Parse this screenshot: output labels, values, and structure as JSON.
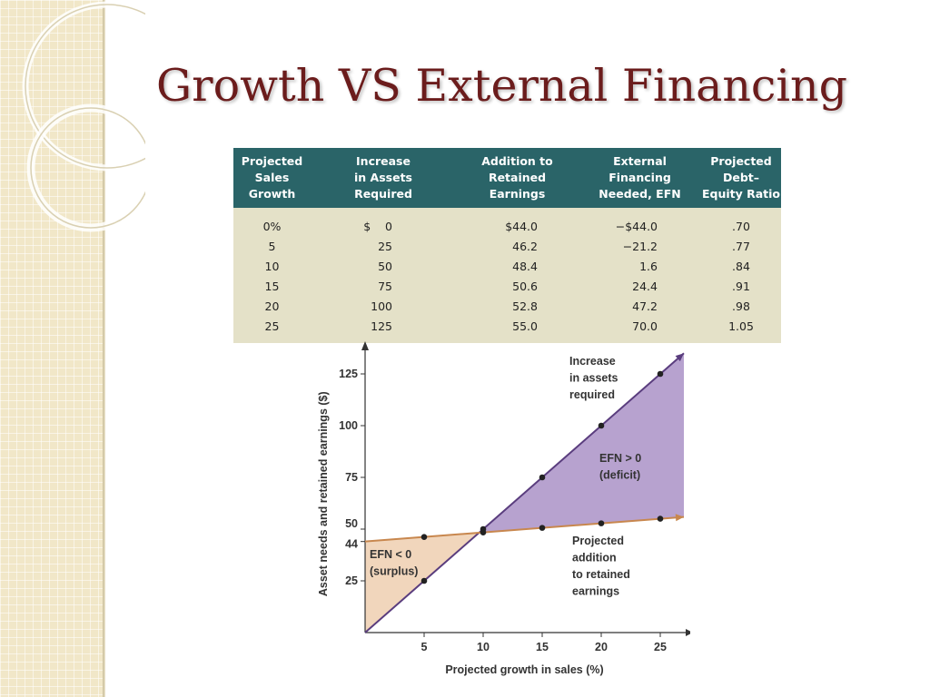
{
  "slide": {
    "title": "Growth VS External Financing"
  },
  "table": {
    "headers": [
      "Projected\nSales\nGrowth",
      "Increase\nin Assets\nRequired",
      "Addition to\nRetained\nEarnings",
      "External\nFinancing\nNeeded, EFN",
      "Projected\nDebt–\nEquity Ratio"
    ],
    "rows": [
      [
        "0%",
        "$    0",
        "$44.0",
        "−$44.0",
        ".70"
      ],
      [
        "5",
        "25",
        "46.2",
        "−21.2",
        ".77"
      ],
      [
        "10",
        "50",
        "48.4",
        "1.6",
        ".84"
      ],
      [
        "15",
        "75",
        "50.6",
        "24.4",
        ".91"
      ],
      [
        "20",
        "100",
        "52.8",
        "47.2",
        ".98"
      ],
      [
        "25",
        "125",
        "55.0",
        "70.0",
        "1.05"
      ]
    ]
  },
  "chart_data": {
    "type": "line",
    "title": "",
    "xlabel": "Projected growth in sales (%)",
    "ylabel": "Asset needs and retained earnings ($)",
    "xlim": [
      0,
      27
    ],
    "ylim": [
      0,
      135
    ],
    "x_ticks": [
      5,
      10,
      15,
      20,
      25
    ],
    "y_ticks": [
      25,
      44,
      50,
      75,
      100,
      125
    ],
    "grid": false,
    "series": [
      {
        "name": "Increase in assets required",
        "x": [
          5,
          10,
          15,
          20,
          25
        ],
        "values": [
          25,
          50,
          75,
          100,
          125
        ],
        "color": "#5a3d7e"
      },
      {
        "name": "Projected addition to retained earnings",
        "x": [
          5,
          10,
          15,
          20,
          25
        ],
        "values": [
          46.2,
          48.4,
          50.6,
          52.8,
          55.0
        ],
        "color": "#c8874e"
      }
    ],
    "annotations": [
      {
        "lines": [
          "Increase",
          "in assets",
          "required"
        ]
      },
      {
        "lines": [
          "EFN > 0",
          "(deficit)"
        ]
      },
      {
        "lines": [
          "EFN < 0",
          "(surplus)"
        ]
      },
      {
        "lines": [
          "Projected",
          "addition",
          "to retained",
          "earnings"
        ]
      }
    ],
    "colors": {
      "deficit_fill": "#b7a2cf",
      "surplus_fill": "#f1d6bc",
      "axis": "#333333"
    }
  }
}
